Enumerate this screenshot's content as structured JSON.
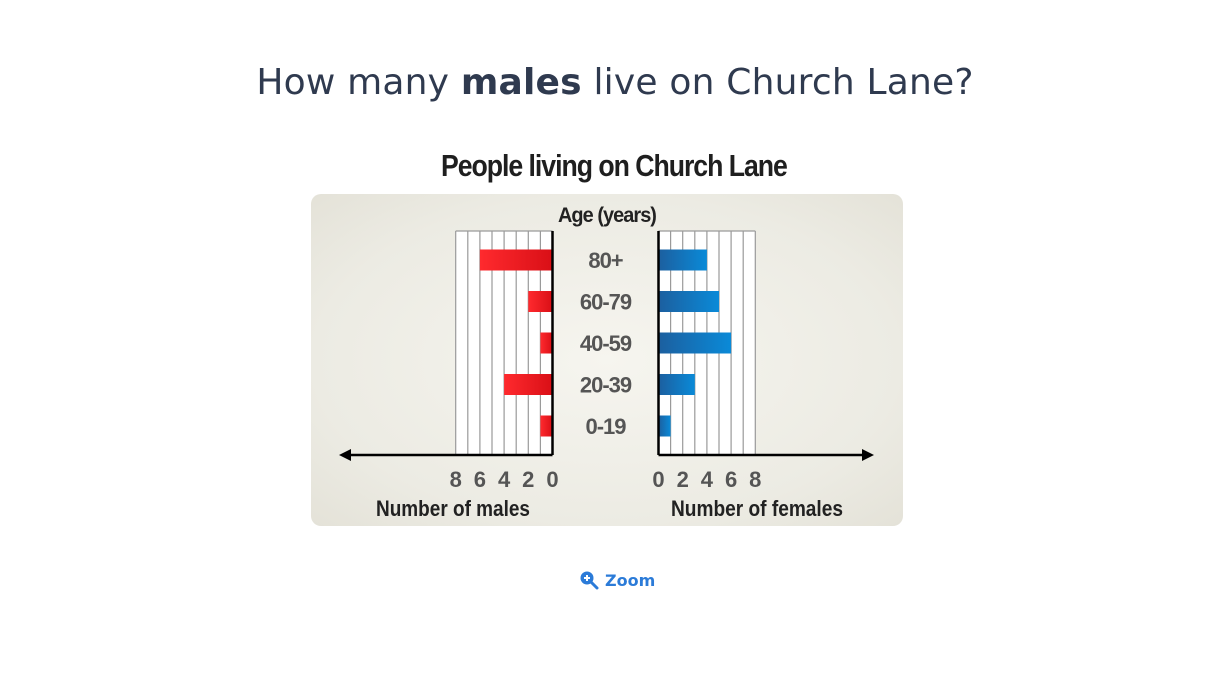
{
  "question": {
    "prefix": "How many ",
    "emphasis": "males",
    "suffix": " live on Church Lane?"
  },
  "zoom_label": "Zoom",
  "chart_data": {
    "type": "bar",
    "title": "People living on Church Lane",
    "center_label": "Age (years)",
    "categories": [
      "80+",
      "60-79",
      "40-59",
      "20-39",
      "0-19"
    ],
    "series": [
      {
        "name": "Number of males",
        "values": [
          6,
          2,
          1,
          4,
          1
        ],
        "color": "#e8141c",
        "direction": "left"
      },
      {
        "name": "Number of females",
        "values": [
          4,
          5,
          6,
          3,
          1
        ],
        "color": "#1a6fb8",
        "direction": "right"
      }
    ],
    "xlabel_left": "Number of males",
    "xlabel_right": "Number of females",
    "xlim": [
      0,
      8
    ],
    "ticks": [
      8,
      6,
      4,
      2,
      0
    ],
    "ticks_right": [
      0,
      2,
      4,
      6,
      8
    ],
    "grid": true
  },
  "colors": {
    "question_text": "#2f3a4f",
    "male_bar": "#e8141c",
    "female_bar": "#1a6fb8",
    "zoom_link": "#2b7bd8"
  }
}
